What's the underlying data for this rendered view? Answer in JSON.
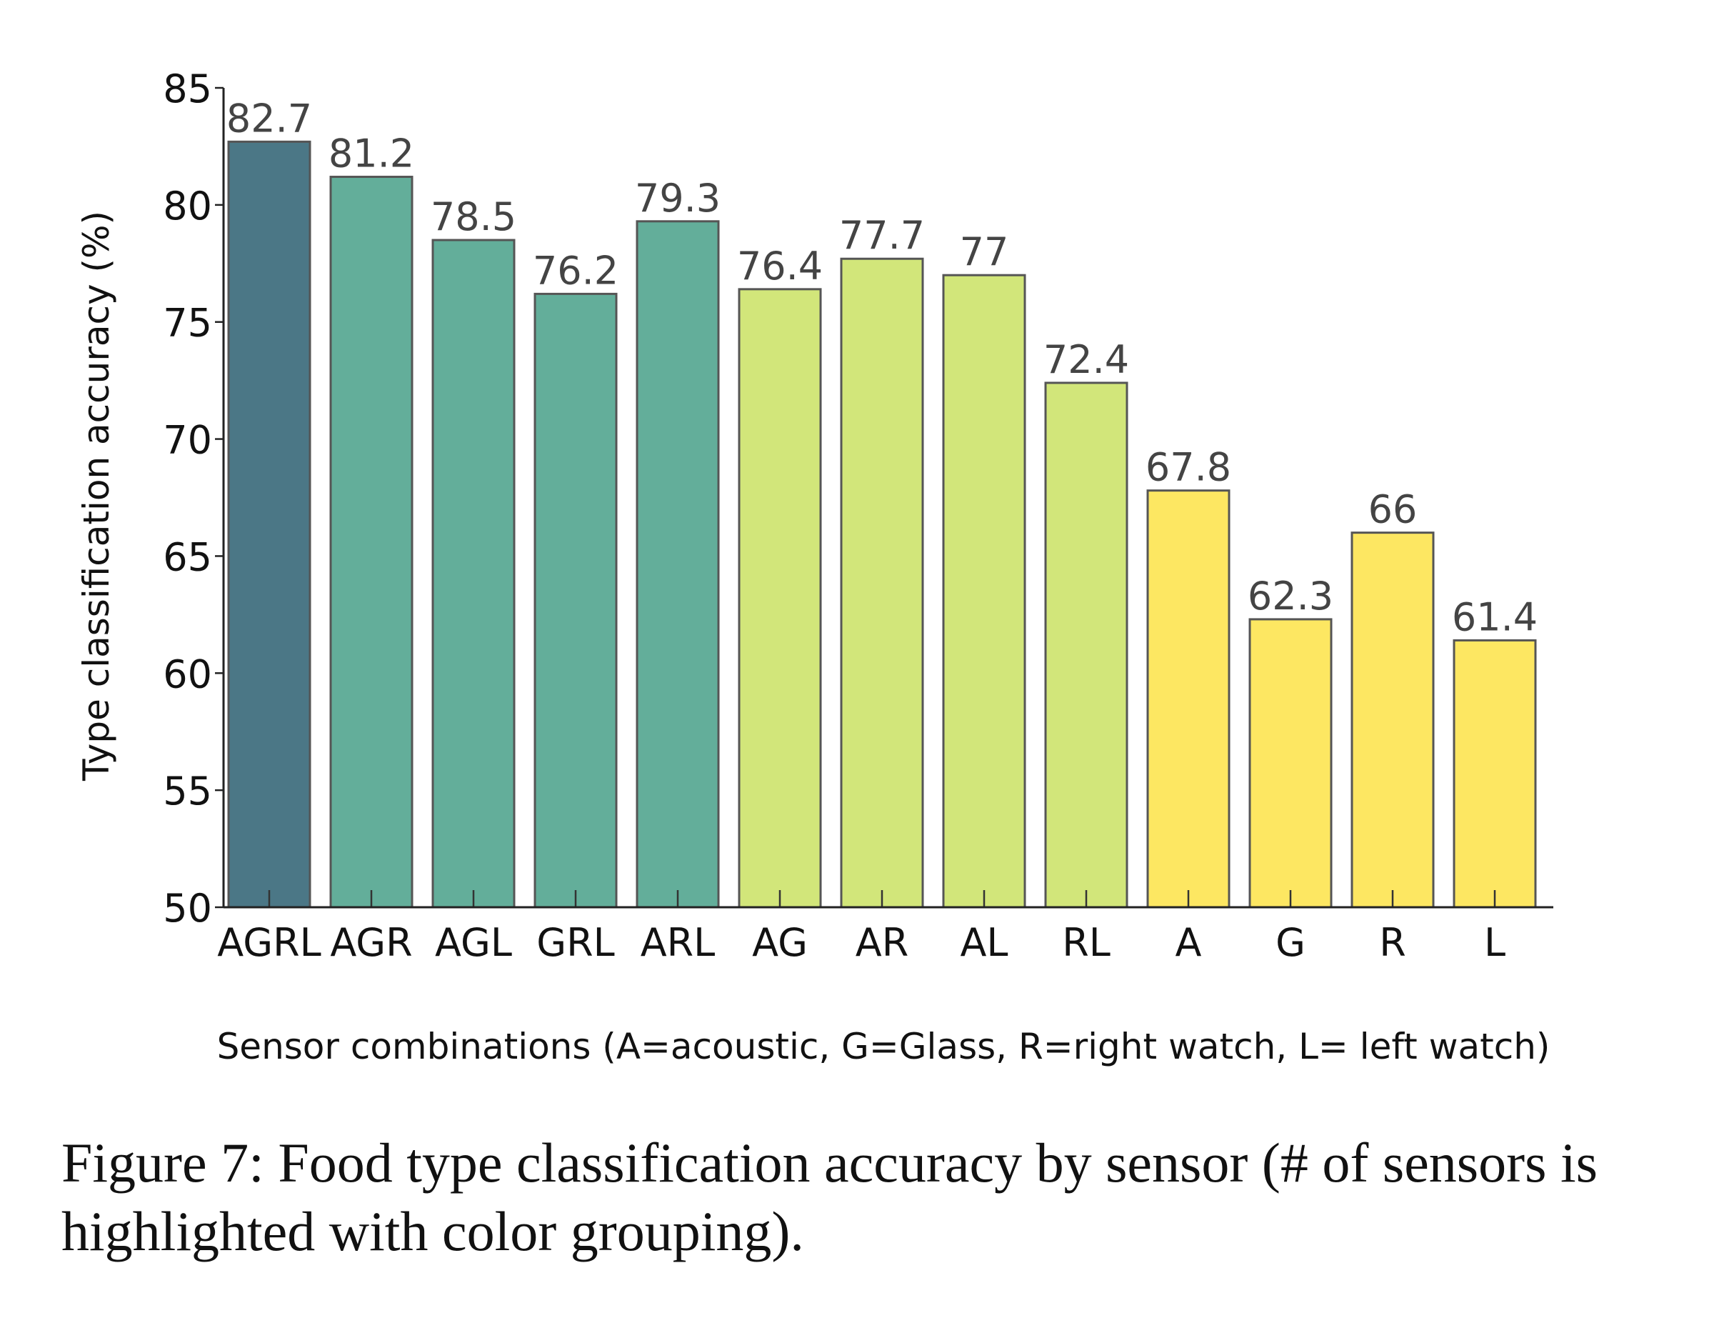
{
  "chart_data": {
    "type": "bar",
    "categories": [
      "AGRL",
      "AGR",
      "AGL",
      "GRL",
      "ARL",
      "AG",
      "AR",
      "AL",
      "RL",
      "A",
      "G",
      "R",
      "L"
    ],
    "values": [
      82.7,
      81.2,
      78.5,
      76.2,
      79.3,
      76.4,
      77.7,
      77,
      72.4,
      67.8,
      62.3,
      66,
      61.4
    ],
    "data_labels": [
      "82.7",
      "81.2",
      "78.5",
      "76.2",
      "79.3",
      "76.4",
      "77.7",
      "77",
      "72.4",
      "67.8",
      "62.3",
      "66",
      "61.4"
    ],
    "bar_colors": [
      "#4b7786",
      "#63ae9a",
      "#63ae9a",
      "#63ae9a",
      "#63ae9a",
      "#d2e67a",
      "#d2e67a",
      "#d2e67a",
      "#d2e67a",
      "#fde762",
      "#fde762",
      "#fde762",
      "#fde762"
    ],
    "ylabel": "Type classification accuracy (%)",
    "xlabel": "Sensor combinations (A=acoustic, G=Glass, R=right watch, L= left watch)",
    "ylim": [
      50,
      85
    ],
    "yticks": [
      50,
      55,
      60,
      65,
      70,
      75,
      80,
      85
    ],
    "grid": false,
    "legend": "none"
  },
  "caption": "Figure 7: Food type classification accuracy by sensor (# of sensors is highlighted with color grouping)."
}
